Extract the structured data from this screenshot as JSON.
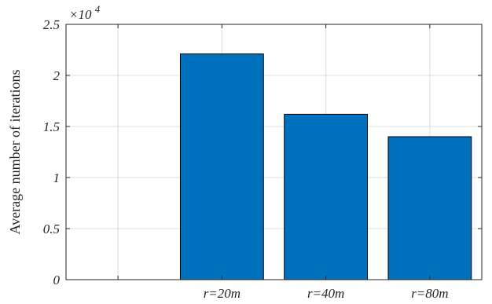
{
  "chart_data": {
    "type": "bar",
    "categories": [
      "r=20m",
      "r=40m",
      "r=80m"
    ],
    "values": [
      22100,
      16200,
      14000
    ],
    "title": "",
    "xlabel": "",
    "ylabel": "Average number of iterations",
    "ylim": [
      0,
      25000
    ],
    "xlim": [
      0.5,
      4.5
    ],
    "yticks": [
      0,
      0.5,
      1,
      1.5,
      2,
      2.5
    ],
    "ytick_labels": [
      "0",
      "0.5",
      "1",
      "1.5",
      "2",
      "2.5"
    ],
    "y_exponent_label": "×10",
    "y_exponent_power": "4",
    "grid": true,
    "bar_color": "#0072BD",
    "bar_edge_color": "#000000",
    "grid_color": "#DCDCDC",
    "axis_color": "#262626"
  }
}
